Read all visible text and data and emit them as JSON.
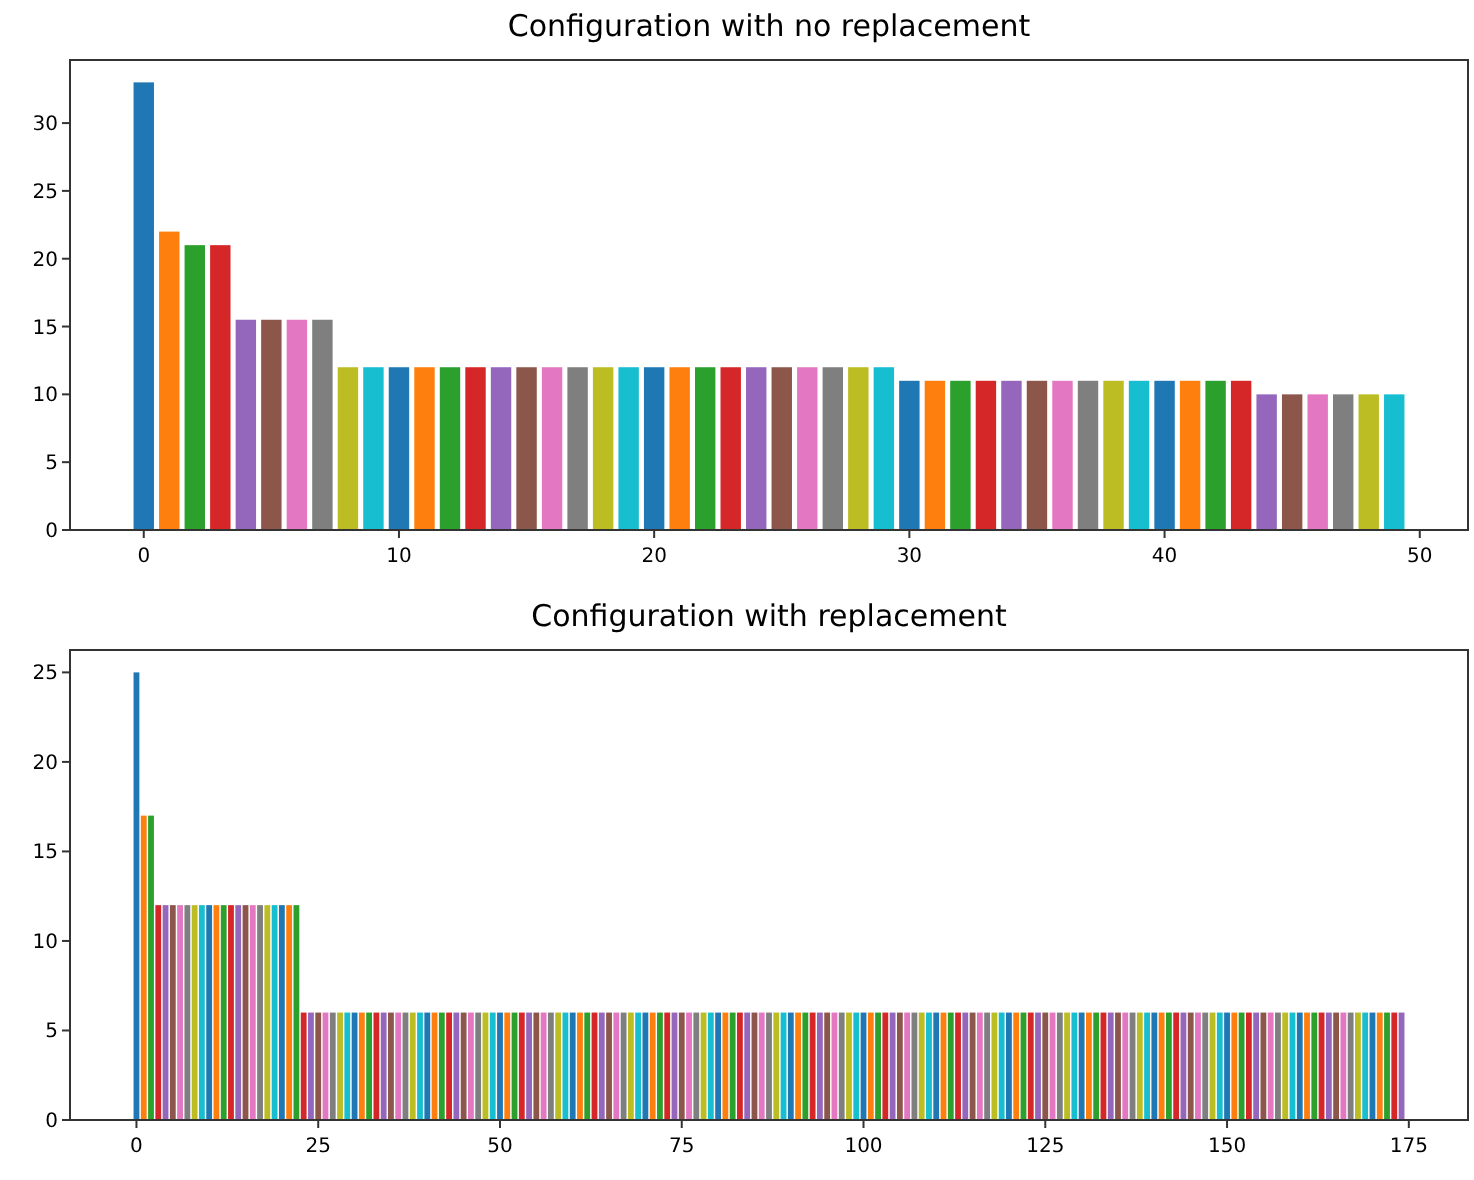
{
  "chart_data": [
    {
      "type": "bar",
      "title": "Configuration with no replacement",
      "x": [
        0,
        1,
        2,
        3,
        4,
        5,
        6,
        7,
        8,
        9,
        10,
        11,
        12,
        13,
        14,
        15,
        16,
        17,
        18,
        19,
        20,
        21,
        22,
        23,
        24,
        25,
        26,
        27,
        28,
        29,
        30,
        31,
        32,
        33,
        34,
        35,
        36,
        37,
        38,
        39,
        40,
        41,
        42,
        43,
        44,
        45,
        46,
        47,
        48,
        49
      ],
      "values": [
        33,
        22,
        21,
        21,
        15.5,
        15.5,
        15.5,
        15.5,
        12,
        12,
        12,
        12,
        12,
        12,
        12,
        12,
        12,
        12,
        12,
        12,
        12,
        12,
        12,
        12,
        12,
        12,
        12,
        12,
        12,
        12,
        11,
        11,
        11,
        11,
        11,
        11,
        11,
        11,
        11,
        11,
        11,
        11,
        11,
        11,
        10,
        10,
        10,
        10,
        10,
        10
      ],
      "colors": [
        "#1f77b4",
        "#ff7f0e",
        "#2ca02c",
        "#d62728",
        "#9467bd",
        "#8c564b",
        "#e377c2",
        "#7f7f7f",
        "#bcbd22",
        "#17becf",
        "#1f77b4",
        "#ff7f0e",
        "#2ca02c",
        "#d62728",
        "#9467bd",
        "#8c564b",
        "#e377c2",
        "#7f7f7f",
        "#bcbd22",
        "#17becf",
        "#1f77b4",
        "#ff7f0e",
        "#2ca02c",
        "#d62728",
        "#9467bd",
        "#8c564b",
        "#e377c2",
        "#7f7f7f",
        "#bcbd22",
        "#17becf",
        "#1f77b4",
        "#ff7f0e",
        "#2ca02c",
        "#d62728",
        "#9467bd",
        "#8c564b",
        "#e377c2",
        "#7f7f7f",
        "#bcbd22",
        "#17becf",
        "#1f77b4",
        "#ff7f0e",
        "#2ca02c",
        "#d62728",
        "#9467bd",
        "#8c564b",
        "#e377c2",
        "#7f7f7f",
        "#bcbd22",
        "#17becf"
      ],
      "xlim": [
        -2.89,
        51.89
      ],
      "xticks": [
        0,
        10,
        20,
        30,
        40,
        50
      ],
      "ylim": [
        0,
        34.65
      ],
      "yticks": [
        0,
        5,
        10,
        15,
        20,
        25,
        30
      ]
    },
    {
      "type": "bar",
      "title": "Configuration with replacement",
      "x": [
        0,
        1,
        2,
        3,
        4,
        5,
        6,
        7,
        8,
        9,
        10,
        11,
        12,
        13,
        14,
        15,
        16,
        17,
        18,
        19,
        20,
        21,
        22,
        23,
        24,
        25,
        26,
        27,
        28,
        29,
        30,
        31,
        32,
        33,
        34,
        35,
        36,
        37,
        38,
        39,
        40,
        41,
        42,
        43,
        44,
        45,
        46,
        47,
        48,
        49,
        50,
        51,
        52,
        53,
        54,
        55,
        56,
        57,
        58,
        59,
        60,
        61,
        62,
        63,
        64,
        65,
        66,
        67,
        68,
        69,
        70,
        71,
        72,
        73,
        74,
        75,
        76,
        77,
        78,
        79,
        80,
        81,
        82,
        83,
        84,
        85,
        86,
        87,
        88,
        89,
        90,
        91,
        92,
        93,
        94,
        95,
        96,
        97,
        98,
        99,
        100,
        101,
        102,
        103,
        104,
        105,
        106,
        107,
        108,
        109,
        110,
        111,
        112,
        113,
        114,
        115,
        116,
        117,
        118,
        119,
        120,
        121,
        122,
        123,
        124,
        125,
        126,
        127,
        128,
        129,
        130,
        131,
        132,
        133,
        134,
        135,
        136,
        137,
        138,
        139,
        140,
        141,
        142,
        143,
        144,
        145,
        146,
        147,
        148,
        149,
        150,
        151,
        152,
        153,
        154,
        155,
        156,
        157,
        158,
        159,
        160,
        161,
        162,
        163,
        164,
        165,
        166,
        167,
        168,
        169,
        170,
        171,
        172,
        173,
        174
      ],
      "values": [
        25,
        17,
        17,
        12,
        12,
        12,
        12,
        12,
        12,
        12,
        12,
        12,
        12,
        12,
        12,
        12,
        12,
        12,
        12,
        12,
        12,
        12,
        12,
        6,
        6,
        6,
        6,
        6,
        6,
        6,
        6,
        6,
        6,
        6,
        6,
        6,
        6,
        6,
        6,
        6,
        6,
        6,
        6,
        6,
        6,
        6,
        6,
        6,
        6,
        6,
        6,
        6,
        6,
        6,
        6,
        6,
        6,
        6,
        6,
        6,
        6,
        6,
        6,
        6,
        6,
        6,
        6,
        6,
        6,
        6,
        6,
        6,
        6,
        6,
        6,
        6,
        6,
        6,
        6,
        6,
        6,
        6,
        6,
        6,
        6,
        6,
        6,
        6,
        6,
        6,
        6,
        6,
        6,
        6,
        6,
        6,
        6,
        6,
        6,
        6,
        6,
        6,
        6,
        6,
        6,
        6,
        6,
        6,
        6,
        6,
        6,
        6,
        6,
        6,
        6,
        6,
        6,
        6,
        6,
        6,
        6,
        6,
        6,
        6,
        6,
        6,
        6,
        6,
        6,
        6,
        6,
        6,
        6,
        6,
        6,
        6,
        6,
        6,
        6,
        6,
        6,
        6,
        6,
        6,
        6,
        6,
        6,
        6,
        6,
        6,
        6,
        6,
        6,
        6,
        6,
        6,
        6,
        6,
        6,
        6,
        6,
        6,
        6,
        6,
        6,
        6,
        6,
        6,
        6,
        6,
        6,
        6,
        6,
        6,
        6
      ],
      "colors": [
        "#1f77b4",
        "#ff7f0e",
        "#2ca02c",
        "#d62728",
        "#9467bd",
        "#8c564b",
        "#e377c2",
        "#7f7f7f",
        "#bcbd22",
        "#17becf",
        "#1f77b4",
        "#ff7f0e",
        "#2ca02c",
        "#d62728",
        "#9467bd",
        "#8c564b",
        "#e377c2",
        "#7f7f7f",
        "#bcbd22",
        "#17becf",
        "#1f77b4",
        "#ff7f0e",
        "#2ca02c",
        "#d62728",
        "#9467bd",
        "#8c564b",
        "#e377c2",
        "#7f7f7f",
        "#bcbd22",
        "#17becf",
        "#1f77b4",
        "#ff7f0e",
        "#2ca02c",
        "#d62728",
        "#9467bd",
        "#8c564b",
        "#e377c2",
        "#7f7f7f",
        "#bcbd22",
        "#17becf",
        "#1f77b4",
        "#ff7f0e",
        "#2ca02c",
        "#d62728",
        "#9467bd",
        "#8c564b",
        "#e377c2",
        "#7f7f7f",
        "#bcbd22",
        "#17becf",
        "#1f77b4",
        "#ff7f0e",
        "#2ca02c",
        "#d62728",
        "#9467bd",
        "#8c564b",
        "#e377c2",
        "#7f7f7f",
        "#bcbd22",
        "#17becf",
        "#1f77b4",
        "#ff7f0e",
        "#2ca02c",
        "#d62728",
        "#9467bd",
        "#8c564b",
        "#e377c2",
        "#7f7f7f",
        "#bcbd22",
        "#17becf",
        "#1f77b4",
        "#ff7f0e",
        "#2ca02c",
        "#d62728",
        "#9467bd",
        "#8c564b",
        "#e377c2",
        "#7f7f7f",
        "#bcbd22",
        "#17becf",
        "#1f77b4",
        "#ff7f0e",
        "#2ca02c",
        "#d62728",
        "#9467bd",
        "#8c564b",
        "#e377c2",
        "#7f7f7f",
        "#bcbd22",
        "#17becf",
        "#1f77b4",
        "#ff7f0e",
        "#2ca02c",
        "#d62728",
        "#9467bd",
        "#8c564b",
        "#e377c2",
        "#7f7f7f",
        "#bcbd22",
        "#17becf",
        "#1f77b4",
        "#ff7f0e",
        "#2ca02c",
        "#d62728",
        "#9467bd",
        "#8c564b",
        "#e377c2",
        "#7f7f7f",
        "#bcbd22",
        "#17becf",
        "#1f77b4",
        "#ff7f0e",
        "#2ca02c",
        "#d62728",
        "#9467bd",
        "#8c564b",
        "#e377c2",
        "#7f7f7f",
        "#bcbd22",
        "#17becf",
        "#1f77b4",
        "#ff7f0e",
        "#2ca02c",
        "#d62728",
        "#9467bd",
        "#8c564b",
        "#e377c2",
        "#7f7f7f",
        "#bcbd22",
        "#17becf",
        "#1f77b4",
        "#ff7f0e",
        "#2ca02c",
        "#d62728",
        "#9467bd",
        "#8c564b",
        "#e377c2",
        "#7f7f7f",
        "#bcbd22",
        "#17becf",
        "#1f77b4",
        "#ff7f0e",
        "#2ca02c",
        "#d62728",
        "#9467bd",
        "#8c564b",
        "#e377c2",
        "#7f7f7f",
        "#bcbd22",
        "#17becf",
        "#1f77b4",
        "#ff7f0e",
        "#2ca02c",
        "#d62728",
        "#9467bd",
        "#8c564b",
        "#e377c2",
        "#7f7f7f",
        "#bcbd22",
        "#17becf",
        "#1f77b4",
        "#ff7f0e",
        "#2ca02c",
        "#d62728",
        "#9467bd",
        "#8c564b",
        "#e377c2",
        "#7f7f7f",
        "#bcbd22",
        "#17becf",
        "#1f77b4",
        "#ff7f0e",
        "#2ca02c",
        "#d62728",
        "#9467bd"
      ],
      "xlim": [
        -9.14,
        183.14
      ],
      "xticks": [
        0,
        25,
        50,
        75,
        100,
        125,
        150,
        175
      ],
      "ylim": [
        0,
        26.25
      ],
      "yticks": [
        0,
        5,
        10,
        15,
        20,
        25
      ]
    }
  ]
}
